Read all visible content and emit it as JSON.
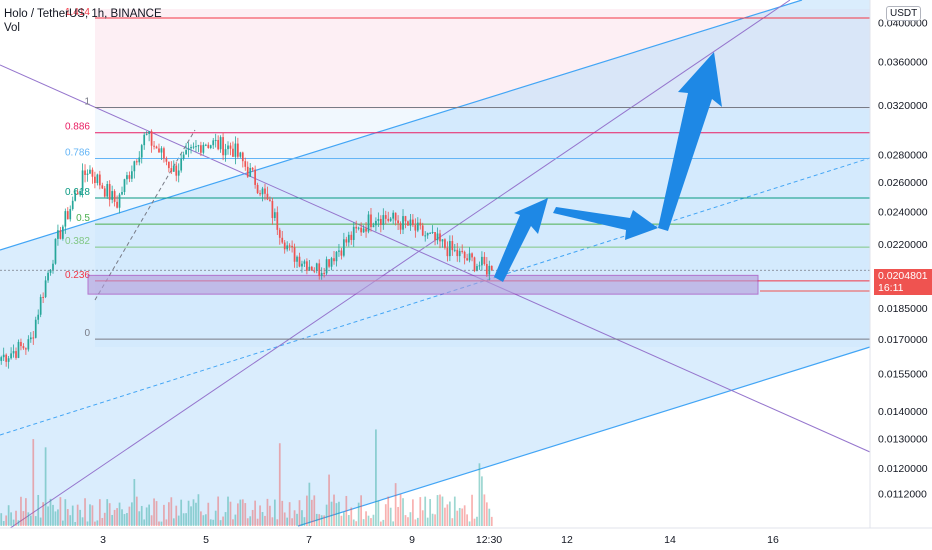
{
  "header": {
    "title": "Holo / TetherUS, 1h, BINANCE",
    "vol_label": "Vol"
  },
  "currency_button": "USDT",
  "price_tag": {
    "price": "0.0204801",
    "countdown": "16:11",
    "color": "#ef5350"
  },
  "colors": {
    "up": "#26a69a",
    "down": "#ef5350",
    "vol_up": "#26a69a",
    "vol_down": "#ef5350",
    "channel_fill": "#bbdefb",
    "channel_line": "#42a5f5",
    "arrow": "#1e88e5",
    "zone": "#b39ddb",
    "trendline": "#9575cd"
  },
  "chart_data": {
    "type": "candlestick",
    "title": "Holo / TetherUS, 1h, BINANCE",
    "ylim": [
      0.0108,
      0.0405
    ],
    "y_scale": "log",
    "y_ticks": [
      "0.0112000",
      "0.0120000",
      "0.0130000",
      "0.0140000",
      "0.0155000",
      "0.0170000",
      "0.0185000",
      "0.0220000",
      "0.0240000",
      "0.0260000",
      "0.0280000",
      "0.0320000",
      "0.0360000",
      "0.0400000"
    ],
    "x_ticks": [
      "3",
      "5",
      "7",
      "9",
      "12:30",
      "12",
      "14",
      "16"
    ],
    "fib_levels": [
      {
        "ratio": "0",
        "price": 0.017,
        "color": "#787b86"
      },
      {
        "ratio": "0.236",
        "price": 0.0199,
        "color": "#f23645"
      },
      {
        "ratio": "0.382",
        "price": 0.0218,
        "color": "#81c784"
      },
      {
        "ratio": "0.5",
        "price": 0.0232,
        "color": "#4caf50"
      },
      {
        "ratio": "0.618",
        "price": 0.0249,
        "color": "#089981"
      },
      {
        "ratio": "0.786",
        "price": 0.0277,
        "color": "#64b5f6"
      },
      {
        "ratio": "0.886",
        "price": 0.0297,
        "color": "#e91e63"
      },
      {
        "ratio": "1",
        "price": 0.0318,
        "color": "#787b86"
      },
      {
        "ratio": "1.414",
        "price": 0.0405,
        "color": "#f23645"
      }
    ],
    "support_zone": [
      0.0192,
      0.0202
    ],
    "current_price": 0.0204801,
    "candles": [
      {
        "date": "Oct 2",
        "close": 0.0162
      },
      {
        "date": "Oct 2 18:00",
        "close": 0.0168
      },
      {
        "date": "Oct 3",
        "close": 0.0225
      },
      {
        "date": "Oct 3 12:00",
        "close": 0.027
      },
      {
        "date": "Oct 4",
        "close": 0.0245
      },
      {
        "date": "Oct 4 12:00",
        "close": 0.0295
      },
      {
        "date": "Oct 5",
        "close": 0.0268
      },
      {
        "date": "Oct 5 12:00",
        "close": 0.029
      },
      {
        "date": "Oct 6",
        "close": 0.0285
      },
      {
        "date": "Oct 6 12:00",
        "close": 0.0255
      },
      {
        "date": "Oct 7",
        "close": 0.0215
      },
      {
        "date": "Oct 7 12:00",
        "close": 0.0205
      },
      {
        "date": "Oct 8",
        "close": 0.0222
      },
      {
        "date": "Oct 8 12:00",
        "close": 0.0238
      },
      {
        "date": "Oct 9",
        "close": 0.0232
      },
      {
        "date": "Oct 9 12:00",
        "close": 0.0222
      },
      {
        "date": "Oct 10",
        "close": 0.0212
      },
      {
        "date": "Oct 10 12:30",
        "close": 0.0204801
      }
    ]
  }
}
